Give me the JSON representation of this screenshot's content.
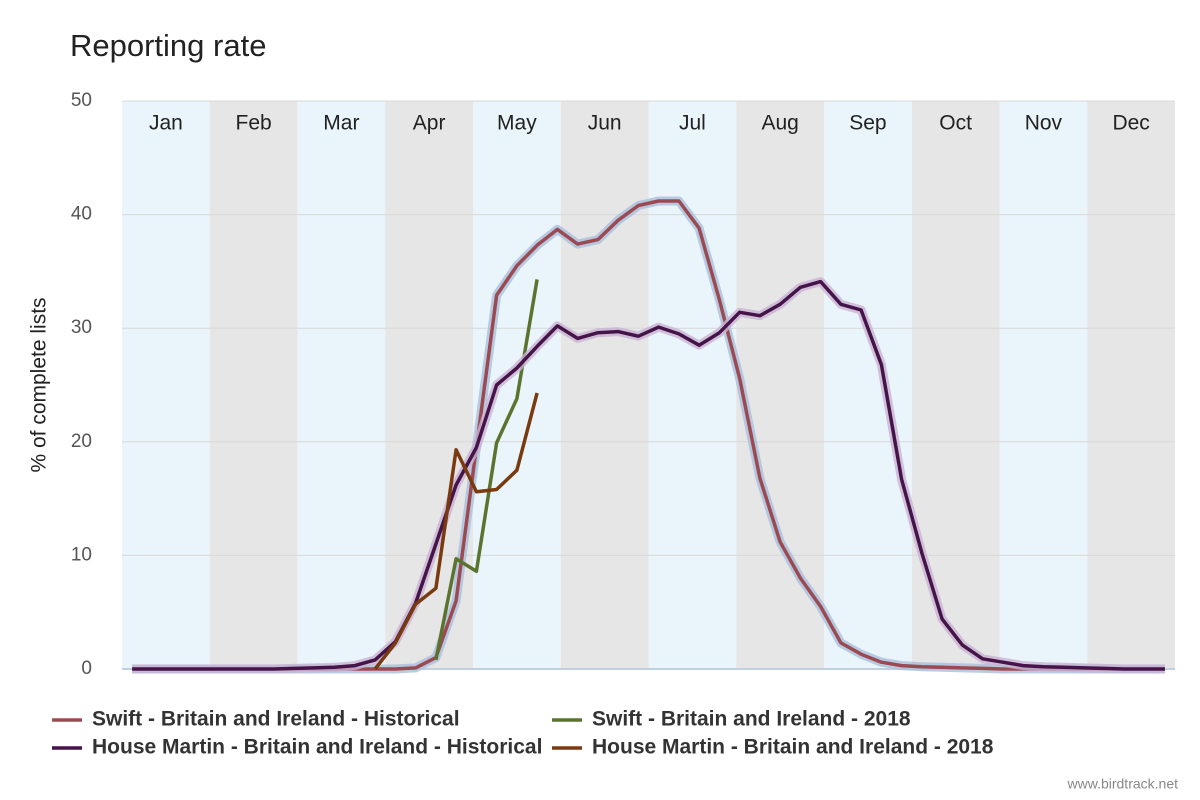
{
  "chart_data": {
    "type": "line",
    "title": "Reporting rate",
    "y_label": "% of complete lists",
    "months": [
      "Jan",
      "Feb",
      "Mar",
      "Apr",
      "May",
      "Jun",
      "Jul",
      "Aug",
      "Sep",
      "Oct",
      "Nov",
      "Dec"
    ],
    "month_colors": [
      "#eaf4fb",
      "#e6e6e6"
    ],
    "xlim": [
      0.5,
      52.5
    ],
    "ylim": [
      0,
      50
    ],
    "yticks": [
      0,
      10,
      20,
      30,
      40,
      50
    ],
    "grid": true,
    "legend": "bottom",
    "source": "www.birdtrack.net",
    "series": [
      {
        "name": "Swift - Britain and Ireland - Historical",
        "color": "#9c4a52",
        "band_color": "#a9bfdc",
        "x": [
          1,
          2,
          3,
          4,
          5,
          6,
          7,
          8,
          9,
          10,
          11,
          12,
          13,
          14,
          15,
          16,
          17,
          18,
          19,
          20,
          21,
          22,
          23,
          24,
          25,
          26,
          27,
          28,
          29,
          30,
          31,
          32,
          33,
          34,
          35,
          36,
          37,
          38,
          39,
          40,
          41,
          42,
          43,
          44,
          45,
          46,
          47,
          48,
          49,
          50,
          51,
          52
        ],
        "values": [
          0,
          0,
          0,
          0,
          0,
          0,
          0,
          0,
          0,
          0,
          0,
          0,
          0,
          0,
          0.1,
          1,
          6,
          19.5,
          32.9,
          35.5,
          37.3,
          38.7,
          37.4,
          37.8,
          39.5,
          40.8,
          41.2,
          41.2,
          38.8,
          32.5,
          25.6,
          16.8,
          11.2,
          8,
          5.5,
          2.3,
          1.3,
          0.6,
          0.3,
          0.2,
          0.15,
          0.1,
          0.05,
          0,
          0,
          0,
          0,
          0,
          0,
          0,
          0,
          0
        ]
      },
      {
        "name": "Swift - Britain and Ireland - 2018",
        "color": "#5a7430",
        "x": [
          16,
          17,
          18,
          19,
          20,
          21
        ],
        "values": [
          0.8,
          9.7,
          8.6,
          19.9,
          23.8,
          34.3
        ]
      },
      {
        "name": "House Martin - Britain and Ireland - Historical",
        "color": "#45154a",
        "band_color": "#c9b3d3",
        "x": [
          1,
          2,
          3,
          4,
          5,
          6,
          7,
          8,
          9,
          10,
          11,
          12,
          13,
          14,
          15,
          16,
          17,
          18,
          19,
          20,
          21,
          22,
          23,
          24,
          25,
          26,
          27,
          28,
          29,
          30,
          31,
          32,
          33,
          34,
          35,
          36,
          37,
          38,
          39,
          40,
          41,
          42,
          43,
          44,
          45,
          46,
          47,
          48,
          49,
          50,
          51,
          52
        ],
        "values": [
          0,
          0,
          0,
          0,
          0,
          0,
          0,
          0,
          0.05,
          0.1,
          0.15,
          0.3,
          0.8,
          2.4,
          5.8,
          11,
          16.2,
          19.5,
          25,
          26.5,
          28.4,
          30.2,
          29.1,
          29.6,
          29.7,
          29.3,
          30.1,
          29.5,
          28.5,
          29.6,
          31.4,
          31.1,
          32.1,
          33.6,
          34.1,
          32.1,
          31.6,
          26.8,
          16.7,
          10.2,
          4.4,
          2.1,
          0.9,
          0.6,
          0.3,
          0.2,
          0.15,
          0.1,
          0.05,
          0,
          0,
          0
        ]
      },
      {
        "name": "House Martin - Britain and Ireland - 2018",
        "color": "#7a3a10",
        "x": [
          13,
          14,
          15,
          16,
          17,
          18,
          19,
          20,
          21
        ],
        "values": [
          0,
          2.3,
          5.7,
          7.1,
          19.3,
          15.6,
          15.8,
          17.5,
          24.3
        ]
      }
    ]
  }
}
